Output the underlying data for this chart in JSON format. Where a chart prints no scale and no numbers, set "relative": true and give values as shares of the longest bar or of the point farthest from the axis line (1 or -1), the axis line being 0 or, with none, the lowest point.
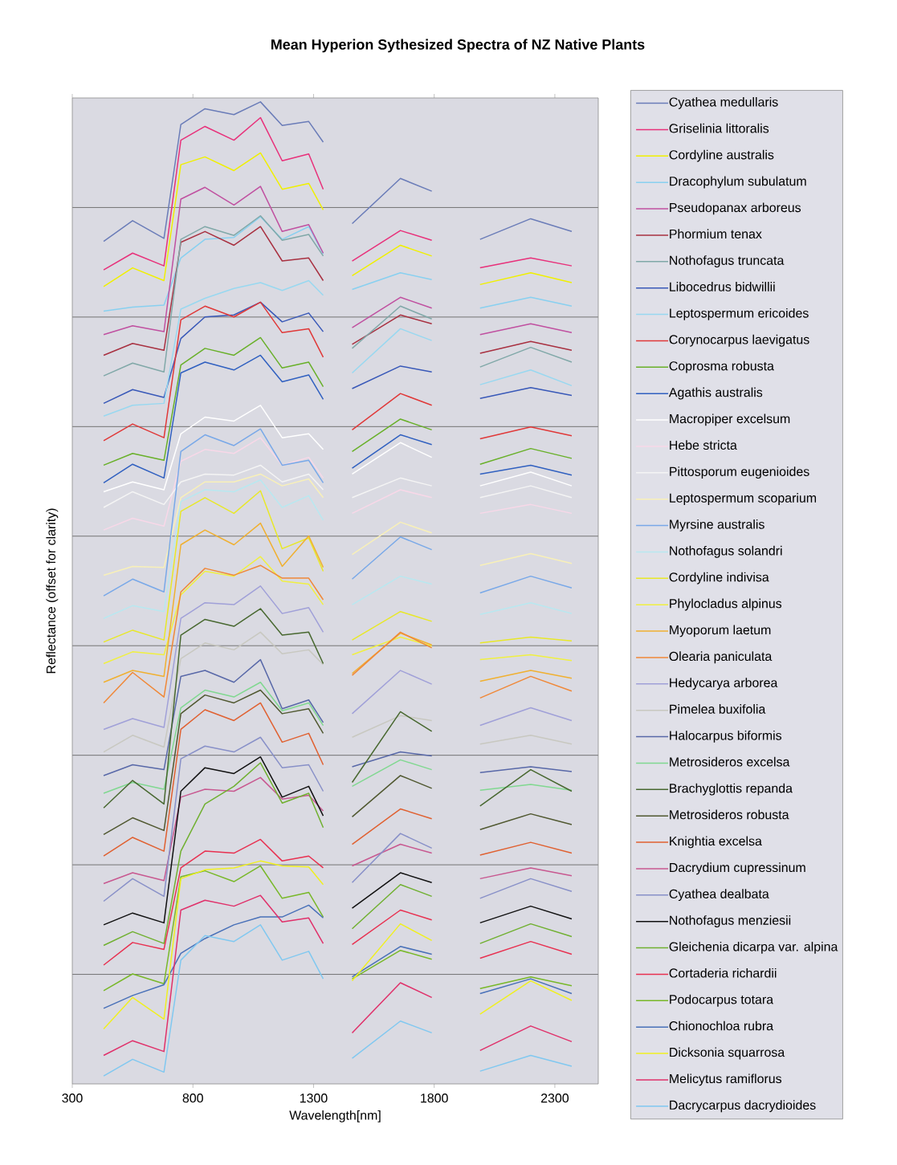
{
  "chart_data": {
    "type": "line",
    "title": "Mean Hyperion Sythesized Spectra of NZ Native Plants",
    "xlabel": "Wavelength[nm]",
    "ylabel": "Reflectance (offset for clarity)",
    "relative": true,
    "grid": "y",
    "legend": "right",
    "x": [
      430,
      550,
      680,
      750,
      850,
      970,
      1080,
      1170,
      1280,
      1340,
      1400,
      1460,
      1660,
      1790,
      1890,
      1990,
      2200,
      2370
    ],
    "xlim": [
      300,
      2480
    ],
    "xticks": [
      300,
      800,
      1300,
      1800,
      2300
    ],
    "series": [
      {
        "name": "Cyathea medullaris",
        "color": "#6a7cb8",
        "values": [
          0.858,
          0.879,
          0.861,
          0.977,
          0.993,
          0.987,
          1.0,
          0.976,
          0.98,
          0.959,
          null,
          0.876,
          0.922,
          0.909,
          null,
          0.86,
          0.881,
          0.868
        ]
      },
      {
        "name": "Griselinia littoralis",
        "color": "#e8307a",
        "values": [
          0.829,
          0.846,
          0.833,
          0.961,
          0.975,
          0.961,
          0.984,
          0.94,
          0.947,
          0.911,
          null,
          0.838,
          0.869,
          0.859,
          null,
          0.831,
          0.841,
          0.833
        ]
      },
      {
        "name": "Cordyline australis",
        "color": "#f0f000",
        "values": [
          0.812,
          0.831,
          0.818,
          0.936,
          0.944,
          0.93,
          0.948,
          0.911,
          0.917,
          0.89,
          null,
          0.823,
          0.854,
          0.843,
          null,
          0.814,
          0.826,
          0.816
        ]
      },
      {
        "name": "Dracophylum subulatum",
        "color": "#88d0f0",
        "values": [
          0.787,
          0.791,
          0.793,
          0.841,
          0.86,
          0.862,
          0.883,
          0.86,
          0.873,
          0.845,
          null,
          0.809,
          0.826,
          0.819,
          null,
          0.79,
          0.801,
          0.792
        ]
      },
      {
        "name": "Pseudopanax arboreus",
        "color": "#c050a0",
        "values": [
          0.763,
          0.772,
          0.766,
          0.901,
          0.913,
          0.895,
          0.914,
          0.868,
          0.875,
          0.846,
          null,
          0.77,
          0.801,
          0.79,
          null,
          0.763,
          0.774,
          0.765
        ]
      },
      {
        "name": "Phormium tenax",
        "color": "#a83040",
        "values": [
          0.742,
          0.754,
          0.747,
          0.857,
          0.868,
          0.854,
          0.873,
          0.838,
          0.841,
          0.818,
          null,
          0.753,
          0.783,
          0.774,
          null,
          0.744,
          0.756,
          0.747
        ]
      },
      {
        "name": "Nothofagus truncata",
        "color": "#80a8a8",
        "values": [
          0.721,
          0.734,
          0.725,
          0.86,
          0.873,
          0.864,
          0.884,
          0.859,
          0.865,
          0.843,
          null,
          0.749,
          0.792,
          0.779,
          null,
          0.73,
          0.75,
          0.735
        ]
      },
      {
        "name": "Libocedrus bidwillii",
        "color": "#3858b8",
        "values": [
          0.693,
          0.707,
          0.699,
          0.759,
          0.781,
          0.783,
          0.796,
          0.776,
          0.785,
          0.766,
          null,
          0.708,
          0.731,
          0.725,
          null,
          0.698,
          0.709,
          0.701
        ]
      },
      {
        "name": "Leptospermum ericoides",
        "color": "#98d8f0",
        "values": [
          0.68,
          0.691,
          0.693,
          0.789,
          0.8,
          0.81,
          0.816,
          0.808,
          0.818,
          0.803,
          null,
          0.724,
          0.769,
          0.757,
          null,
          0.712,
          0.727,
          0.711
        ]
      },
      {
        "name": "Corynocarpus laevigatus",
        "color": "#e03838",
        "values": [
          0.655,
          0.672,
          0.658,
          0.778,
          0.792,
          0.781,
          0.796,
          0.765,
          0.769,
          0.74,
          null,
          0.666,
          0.703,
          0.691,
          null,
          0.657,
          0.669,
          0.66
        ]
      },
      {
        "name": "Coprosma robusta",
        "color": "#68b028",
        "values": [
          0.63,
          0.642,
          0.635,
          0.732,
          0.749,
          0.742,
          0.76,
          0.729,
          0.735,
          0.71,
          null,
          0.644,
          0.677,
          0.666,
          null,
          0.631,
          0.647,
          0.637
        ]
      },
      {
        "name": "Agathis australis",
        "color": "#3060c0",
        "values": [
          0.612,
          0.631,
          0.617,
          0.724,
          0.735,
          0.727,
          0.742,
          0.715,
          0.722,
          0.697,
          null,
          0.627,
          0.661,
          0.651,
          null,
          0.621,
          0.63,
          0.62
        ]
      },
      {
        "name": "Macropiper excelsum",
        "color": "#ffffff",
        "values": [
          0.603,
          0.613,
          0.605,
          0.662,
          0.679,
          0.675,
          0.691,
          0.658,
          0.662,
          0.646,
          null,
          0.621,
          0.653,
          0.638,
          null,
          0.609,
          0.623,
          0.609
        ]
      },
      {
        "name": "Hebe stricta",
        "color": "#f8d8e8",
        "values": [
          0.564,
          0.576,
          0.568,
          0.634,
          0.646,
          0.642,
          0.658,
          0.63,
          0.638,
          0.617,
          null,
          0.581,
          0.605,
          0.597,
          null,
          0.581,
          0.59,
          0.581
        ]
      },
      {
        "name": "Pittosporum eugenioides",
        "color": "#f4f4f4",
        "values": [
          0.587,
          0.603,
          0.59,
          0.613,
          0.621,
          0.62,
          0.63,
          0.613,
          0.621,
          0.605,
          null,
          0.597,
          0.617,
          0.609,
          null,
          0.597,
          0.609,
          0.597
        ]
      },
      {
        "name": "Leptospermum scoparium",
        "color": "#f8f0b8",
        "values": [
          0.518,
          0.527,
          0.526,
          0.597,
          0.613,
          0.613,
          0.621,
          0.609,
          0.616,
          0.597,
          null,
          0.539,
          0.572,
          0.561,
          null,
          0.528,
          0.54,
          0.53
        ]
      },
      {
        "name": "Myrsine australis",
        "color": "#78a8e8",
        "values": [
          0.497,
          0.514,
          0.501,
          0.644,
          0.661,
          0.65,
          0.667,
          0.63,
          0.635,
          0.612,
          null,
          0.514,
          0.557,
          0.544,
          null,
          0.5,
          0.517,
          0.505
        ]
      },
      {
        "name": "Nothofagus solandri",
        "color": "#b8e8f0",
        "values": [
          0.474,
          0.487,
          0.481,
          0.593,
          0.605,
          0.603,
          0.615,
          0.587,
          0.599,
          0.574,
          null,
          0.488,
          0.517,
          0.509,
          null,
          0.478,
          0.49,
          0.479
        ]
      },
      {
        "name": "Cordyline indivisa",
        "color": "#e8e828",
        "values": [
          0.45,
          0.462,
          0.452,
          0.583,
          0.597,
          0.581,
          0.604,
          0.545,
          0.556,
          0.522,
          null,
          0.452,
          0.481,
          0.471,
          null,
          0.449,
          0.455,
          0.451
        ]
      },
      {
        "name": "Phylocladus alpinus",
        "color": "#f0f040",
        "values": [
          0.428,
          0.44,
          0.437,
          0.498,
          0.522,
          0.517,
          0.537,
          0.512,
          0.509,
          0.488,
          null,
          0.437,
          0.455,
          0.446,
          null,
          0.432,
          0.437,
          0.431
        ]
      },
      {
        "name": "Myoporum laetum",
        "color": "#f0b030",
        "values": [
          0.409,
          0.421,
          0.415,
          0.549,
          0.564,
          0.549,
          0.571,
          0.527,
          0.558,
          0.526,
          null,
          0.418,
          0.459,
          0.447,
          null,
          0.41,
          0.421,
          0.413
        ]
      },
      {
        "name": "Olearia paniculata",
        "color": "#f08838",
        "values": [
          0.388,
          0.419,
          0.394,
          0.501,
          0.525,
          0.518,
          0.528,
          0.515,
          0.515,
          0.493,
          null,
          0.416,
          0.46,
          0.444,
          null,
          0.393,
          0.415,
          0.4
        ]
      },
      {
        "name": "Hedycarya arborea",
        "color": "#a0a0d8",
        "values": [
          0.361,
          0.372,
          0.363,
          0.474,
          0.49,
          0.488,
          0.507,
          0.479,
          0.485,
          0.46,
          null,
          0.377,
          0.421,
          0.407,
          null,
          0.365,
          0.383,
          0.37
        ]
      },
      {
        "name": "Pimelea buxifolia",
        "color": "#c8c8c0",
        "values": [
          0.338,
          0.355,
          0.343,
          0.433,
          0.449,
          0.442,
          0.46,
          0.438,
          0.442,
          0.427,
          null,
          0.353,
          0.375,
          0.37,
          null,
          0.346,
          0.355,
          0.346
        ]
      },
      {
        "name": "Halocarpus biformis",
        "color": "#5868a8",
        "values": [
          0.314,
          0.325,
          0.32,
          0.415,
          0.421,
          0.409,
          0.432,
          0.382,
          0.391,
          0.368,
          null,
          0.323,
          0.338,
          0.334,
          null,
          0.317,
          0.323,
          0.318
        ]
      },
      {
        "name": "Metrosideros excelsa",
        "color": "#80d890",
        "values": [
          0.296,
          0.307,
          0.3,
          0.383,
          0.401,
          0.394,
          0.409,
          0.38,
          0.388,
          0.365,
          null,
          0.303,
          0.33,
          0.32,
          null,
          0.299,
          0.305,
          0.299
        ]
      },
      {
        "name": "Brachyglottis repanda",
        "color": "#486830",
        "values": [
          0.281,
          0.309,
          0.285,
          0.457,
          0.473,
          0.466,
          0.484,
          0.457,
          0.46,
          0.428,
          null,
          0.307,
          0.379,
          0.359,
          null,
          0.283,
          0.32,
          0.298
        ]
      },
      {
        "name": "Metrosideros robusta",
        "color": "#505830",
        "values": [
          0.254,
          0.271,
          0.258,
          0.377,
          0.396,
          0.388,
          0.401,
          0.377,
          0.382,
          0.357,
          null,
          0.272,
          0.314,
          0.301,
          null,
          0.259,
          0.275,
          0.264
        ]
      },
      {
        "name": "Knightia excelsa",
        "color": "#e06030",
        "values": [
          0.232,
          0.251,
          0.237,
          0.361,
          0.381,
          0.37,
          0.388,
          0.348,
          0.357,
          0.325,
          null,
          0.244,
          0.28,
          0.27,
          null,
          0.233,
          0.246,
          0.235
        ]
      },
      {
        "name": "Dacrydium cupressinum",
        "color": "#c85890",
        "values": [
          0.204,
          0.215,
          0.207,
          0.292,
          0.3,
          0.298,
          0.312,
          0.29,
          0.294,
          0.278,
          null,
          0.222,
          0.244,
          0.235,
          null,
          0.209,
          0.22,
          0.212
        ]
      },
      {
        "name": "Cyathea dealbata",
        "color": "#8890c8",
        "values": [
          0.186,
          0.209,
          0.191,
          0.331,
          0.344,
          0.338,
          0.353,
          0.322,
          0.325,
          0.298,
          null,
          0.205,
          0.255,
          0.24,
          null,
          0.189,
          0.209,
          0.196
        ]
      },
      {
        "name": "Nothofagus menziesii",
        "color": "#101010",
        "values": [
          0.162,
          0.174,
          0.164,
          0.298,
          0.322,
          0.316,
          0.333,
          0.292,
          0.303,
          0.273,
          null,
          0.179,
          0.215,
          0.205,
          null,
          0.164,
          0.181,
          0.168
        ]
      },
      {
        "name": "Gleichenia dicarpa var. alpina",
        "color": "#70b030",
        "values": [
          0.141,
          0.155,
          0.143,
          0.237,
          0.285,
          0.303,
          0.327,
          0.286,
          0.296,
          0.261,
          null,
          0.158,
          0.203,
          0.191,
          null,
          0.143,
          0.163,
          0.15
        ]
      },
      {
        "name": "Cortaderia richardii",
        "color": "#e83050",
        "values": [
          0.121,
          0.144,
          0.137,
          0.22,
          0.237,
          0.235,
          0.249,
          0.227,
          0.232,
          0.22,
          null,
          0.142,
          0.177,
          0.167,
          null,
          0.128,
          0.145,
          0.132
        ]
      },
      {
        "name": "Podocarpus totara",
        "color": "#78b828",
        "values": [
          0.095,
          0.112,
          0.102,
          0.211,
          0.217,
          0.206,
          0.222,
          0.189,
          0.195,
          0.17,
          null,
          0.107,
          0.136,
          0.127,
          null,
          0.097,
          0.109,
          0.1
        ]
      },
      {
        "name": "Chionochloa rubra",
        "color": "#4870b8",
        "values": [
          0.077,
          0.09,
          0.101,
          0.133,
          0.148,
          0.162,
          0.17,
          0.17,
          0.182,
          0.169,
          null,
          0.109,
          0.14,
          0.132,
          null,
          0.092,
          0.107,
          0.092
        ]
      },
      {
        "name": "Dicksonia squarrosa",
        "color": "#f0f020",
        "values": [
          0.056,
          0.088,
          0.066,
          0.209,
          0.218,
          0.22,
          0.227,
          0.222,
          0.221,
          0.203,
          null,
          0.105,
          0.163,
          0.146,
          null,
          0.071,
          0.105,
          0.085
        ]
      },
      {
        "name": "Melicytus ramiflorus",
        "color": "#e0306a",
        "values": [
          0.029,
          0.044,
          0.033,
          0.177,
          0.187,
          0.181,
          0.192,
          0.165,
          0.169,
          0.143,
          null,
          0.052,
          0.103,
          0.088,
          null,
          0.034,
          0.059,
          0.043
        ]
      },
      {
        "name": "Dacrycarpus dacrydioides",
        "color": "#80c8f0",
        "values": [
          0.008,
          0.025,
          0.012,
          0.126,
          0.151,
          0.145,
          0.162,
          0.126,
          0.135,
          0.107,
          null,
          0.026,
          0.064,
          0.052,
          null,
          0.013,
          0.029,
          0.018
        ]
      }
    ]
  }
}
